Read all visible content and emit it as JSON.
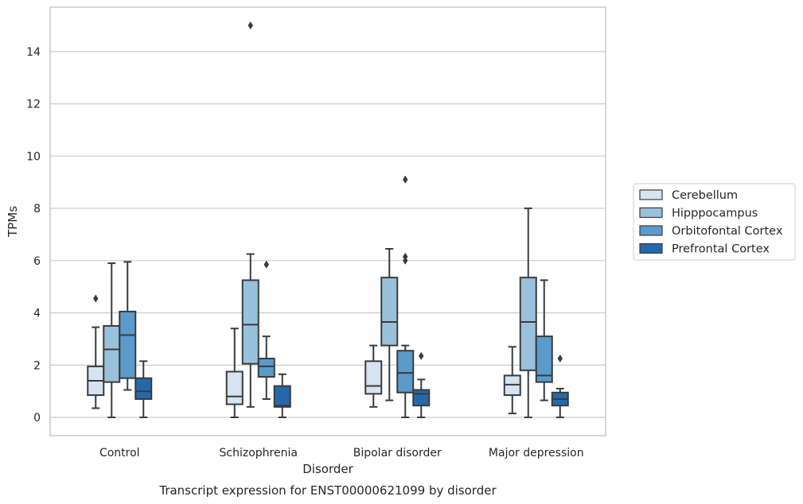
{
  "chart_data": {
    "type": "box",
    "xlabel": "Disorder",
    "ylabel": "TPMs",
    "caption": "Transcript expression for ENST00000621099 by disorder",
    "ylim": [
      -0.7,
      15.7
    ],
    "yticks": [
      0,
      2,
      4,
      6,
      8,
      10,
      12,
      14
    ],
    "grid": "horizontal",
    "legend_position": "right",
    "categories": [
      "Control",
      "Schizophrenia",
      "Bipolar disorder",
      "Major depression"
    ],
    "series": [
      {
        "name": "Cerebellum",
        "color": "#d6e3f1",
        "boxes": [
          {
            "whislo": 0.35,
            "q1": 0.85,
            "med": 1.4,
            "q3": 1.95,
            "whishi": 3.45,
            "fliers": [
              4.55
            ]
          },
          {
            "whislo": 0.0,
            "q1": 0.5,
            "med": 0.8,
            "q3": 1.75,
            "whishi": 3.4,
            "fliers": []
          },
          {
            "whislo": 0.4,
            "q1": 0.9,
            "med": 1.2,
            "q3": 2.15,
            "whishi": 2.75,
            "fliers": []
          },
          {
            "whislo": 0.15,
            "q1": 0.85,
            "med": 1.25,
            "q3": 1.6,
            "whishi": 2.7,
            "fliers": []
          }
        ]
      },
      {
        "name": "Hipppocampus",
        "color": "#9ac1dc",
        "boxes": [
          {
            "whislo": 0.0,
            "q1": 1.35,
            "med": 2.6,
            "q3": 3.5,
            "whishi": 5.9,
            "fliers": []
          },
          {
            "whislo": 0.4,
            "q1": 2.05,
            "med": 3.55,
            "q3": 5.25,
            "whishi": 6.25,
            "fliers": [
              15.0
            ]
          },
          {
            "whislo": 0.65,
            "q1": 2.75,
            "med": 3.65,
            "q3": 5.35,
            "whishi": 6.45,
            "fliers": []
          },
          {
            "whislo": 0.0,
            "q1": 1.8,
            "med": 3.65,
            "q3": 5.35,
            "whishi": 8.0,
            "fliers": []
          }
        ]
      },
      {
        "name": "Orbitofontal Cortex",
        "color": "#5a9bcb",
        "boxes": [
          {
            "whislo": 1.05,
            "q1": 1.5,
            "med": 3.15,
            "q3": 4.05,
            "whishi": 5.95,
            "fliers": []
          },
          {
            "whislo": 0.7,
            "q1": 1.55,
            "med": 1.95,
            "q3": 2.25,
            "whishi": 3.1,
            "fliers": [
              5.85
            ]
          },
          {
            "whislo": 0.0,
            "q1": 0.95,
            "med": 1.7,
            "q3": 2.55,
            "whishi": 2.75,
            "fliers": [
              9.1,
              6.15,
              6.0
            ]
          },
          {
            "whislo": 0.65,
            "q1": 1.35,
            "med": 1.6,
            "q3": 3.1,
            "whishi": 5.25,
            "fliers": []
          }
        ]
      },
      {
        "name": "Prefrontal Cortex",
        "color": "#2568a9",
        "boxes": [
          {
            "whislo": 0.0,
            "q1": 0.7,
            "med": 1.0,
            "q3": 1.5,
            "whishi": 2.15,
            "fliers": []
          },
          {
            "whislo": 0.0,
            "q1": 0.4,
            "med": 0.45,
            "q3": 1.2,
            "whishi": 1.65,
            "fliers": []
          },
          {
            "whislo": 0.0,
            "q1": 0.45,
            "med": 0.9,
            "q3": 1.05,
            "whishi": 1.45,
            "fliers": [
              2.35
            ]
          },
          {
            "whislo": 0.0,
            "q1": 0.45,
            "med": 0.7,
            "q3": 0.95,
            "whishi": 1.1,
            "fliers": [
              2.25
            ]
          }
        ]
      }
    ]
  }
}
